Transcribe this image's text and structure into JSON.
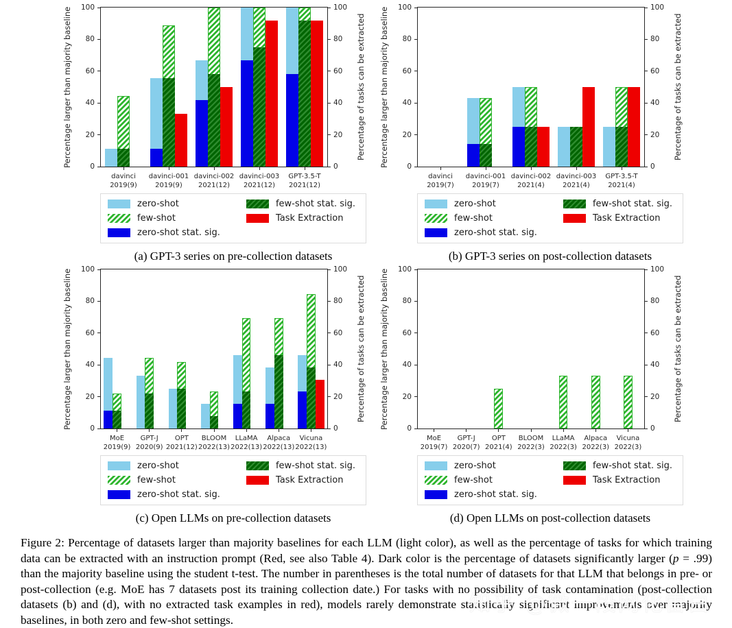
{
  "axes": {
    "ylabel_left": "Percentage larger than majority baseline",
    "ylabel_right": "Percentage of tasks can be extracted",
    "yticks": [
      0,
      20,
      40,
      60,
      80,
      100
    ],
    "ylim": [
      0,
      100
    ]
  },
  "colors": {
    "zero_shot": "#87CEEB",
    "zero_shot_sig": "#0202E8",
    "few_shot": "#2DB52D",
    "few_shot_sig": "#006400",
    "few_shot_sig_stripe": "#2E8B2E",
    "task_extraction": "#EE0000",
    "axis": "#262626"
  },
  "legend": {
    "items": [
      {
        "key": "zero_shot",
        "label": "zero-shot"
      },
      {
        "key": "few_shot",
        "label": "few-shot"
      },
      {
        "key": "zero_shot_sig",
        "label": "zero-shot stat. sig."
      },
      {
        "key": "few_shot_sig",
        "label": "few-shot stat. sig."
      },
      {
        "key": "task_extraction",
        "label": "Task Extraction"
      }
    ],
    "columns": [
      [
        0,
        1,
        2
      ],
      [
        3,
        4
      ]
    ]
  },
  "chart_data": [
    {
      "type": "bar",
      "caption": "(a) GPT-3 series on pre-collection datasets",
      "categories": [
        {
          "model": "davinci",
          "detail": "2019(9)"
        },
        {
          "model": "davinci-001",
          "detail": "2019(9)"
        },
        {
          "model": "davinci-002",
          "detail": "2021(12)"
        },
        {
          "model": "davinci-003",
          "detail": "2021(12)"
        },
        {
          "model": "GPT-3.5-T",
          "detail": "2021(12)"
        }
      ],
      "series": {
        "zero_shot": [
          11.1,
          55.6,
          66.7,
          100,
          100
        ],
        "zero_shot_sig": [
          0,
          11.1,
          41.7,
          66.7,
          58.3
        ],
        "few_shot": [
          44.4,
          88.9,
          100,
          100,
          100
        ],
        "few_shot_sig": [
          11.1,
          55.6,
          58.3,
          75,
          91.7
        ],
        "task_extraction": [
          0,
          33.3,
          50,
          91.7,
          91.7
        ]
      }
    },
    {
      "type": "bar",
      "caption": "(b) GPT-3 series on post-collection datasets",
      "categories": [
        {
          "model": "davinci",
          "detail": "2019(7)"
        },
        {
          "model": "davinci-001",
          "detail": "2019(7)"
        },
        {
          "model": "davinci-002",
          "detail": "2021(4)"
        },
        {
          "model": "davinci-003",
          "detail": "2021(4)"
        },
        {
          "model": "GPT-3.5-T",
          "detail": "2021(4)"
        }
      ],
      "series": {
        "zero_shot": [
          0,
          42.9,
          50,
          25,
          25
        ],
        "zero_shot_sig": [
          0,
          14.3,
          25,
          0,
          0
        ],
        "few_shot": [
          0,
          42.9,
          50,
          25,
          50
        ],
        "few_shot_sig": [
          0,
          14.3,
          25,
          25,
          25
        ],
        "task_extraction": [
          0,
          0,
          25,
          50,
          50
        ]
      }
    },
    {
      "type": "bar",
      "caption": "(c) Open LLMs on pre-collection datasets",
      "categories": [
        {
          "model": "MoE",
          "detail": "2019(9)"
        },
        {
          "model": "GPT-J",
          "detail": "2020(9)"
        },
        {
          "model": "OPT",
          "detail": "2021(12)"
        },
        {
          "model": "BLOOM",
          "detail": "2022(13)"
        },
        {
          "model": "LLaMA",
          "detail": "2022(13)"
        },
        {
          "model": "Alpaca",
          "detail": "2022(13)"
        },
        {
          "model": "Vicuna",
          "detail": "2022(13)"
        }
      ],
      "series": {
        "zero_shot": [
          44.4,
          33.3,
          25,
          15.4,
          46.2,
          38.5,
          46.2
        ],
        "zero_shot_sig": [
          11.1,
          0,
          0,
          0,
          15.4,
          15.4,
          23.1
        ],
        "few_shot": [
          22.2,
          44.4,
          41.7,
          23.1,
          69.2,
          69.2,
          84.6
        ],
        "few_shot_sig": [
          11.1,
          22.2,
          25,
          7.7,
          23.1,
          46.2,
          38.5
        ],
        "task_extraction": [
          0,
          0,
          0,
          0,
          0,
          0,
          30.8
        ]
      }
    },
    {
      "type": "bar",
      "caption": "(d) Open LLMs on post-collection datasets",
      "categories": [
        {
          "model": "MoE",
          "detail": "2019(7)"
        },
        {
          "model": "GPT-J",
          "detail": "2020(7)"
        },
        {
          "model": "OPT",
          "detail": "2021(4)"
        },
        {
          "model": "BLOOM",
          "detail": "2022(3)"
        },
        {
          "model": "LLaMA",
          "detail": "2022(3)"
        },
        {
          "model": "Alpaca",
          "detail": "2022(3)"
        },
        {
          "model": "Vicuna",
          "detail": "2022(3)"
        }
      ],
      "series": {
        "zero_shot": [
          0,
          0,
          0,
          0,
          0,
          0,
          0
        ],
        "zero_shot_sig": [
          0,
          0,
          0,
          0,
          0,
          0,
          0
        ],
        "few_shot": [
          0,
          0,
          25,
          0,
          33.3,
          33.3,
          33.3
        ],
        "few_shot_sig": [
          0,
          0,
          0,
          0,
          0,
          0,
          0
        ],
        "task_extraction": [
          0,
          0,
          0,
          0,
          0,
          0,
          0
        ]
      }
    }
  ],
  "figure": {
    "caption_prefix": "Figure 2: Percentage of datasets larger than majority baselines for each LLM (light color), as well as the percentage of tasks for which training data can be extracted with an instruction prompt (Red, see also Table 4). Dark color is the percentage of datasets significantly larger (",
    "caption_p": "p",
    "caption_suffix": " = .99) than the majority baseline using the student t-test. The number in parentheses is the total number of datasets for that LLM that belongs in pre- or post-collection (e.g. MoE has 7 datasets post its training collection date.) For tasks with no possibility of task contamination (post-collection datasets (b) and (d), with no extracted task examples in red), models rarely demonstrate statistically significant improvements over majority baselines, in both zero and few-shot settings."
  },
  "watermark": "知乎 @微一段网化雷白"
}
